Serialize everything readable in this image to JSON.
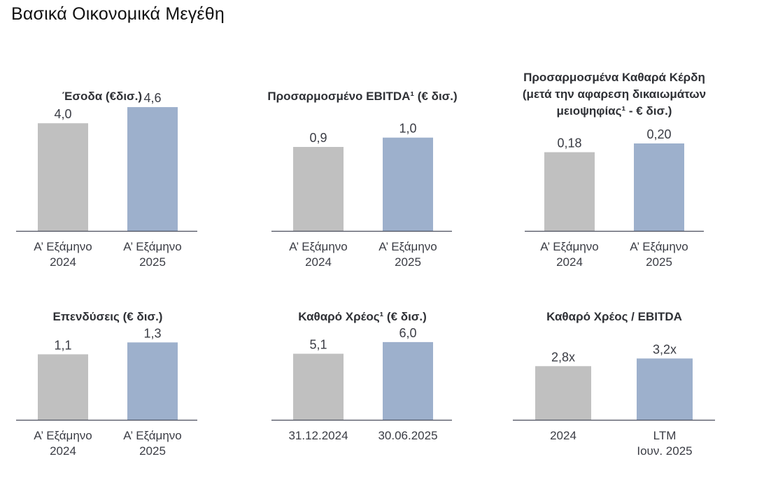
{
  "page": {
    "title": "Βασικά Οικονομικά Μεγέθη"
  },
  "colors": {
    "prior": "#c0c0c0",
    "current": "#9db0cc",
    "axis": "#4a4d5c"
  },
  "chart_data": [
    {
      "type": "bar",
      "title_lines": [
        "Έσοδα (€δισ.)"
      ],
      "categories": [
        [
          "Α’ Εξάμηνο",
          "2024"
        ],
        [
          "Α’ Εξάμηνο",
          "2025"
        ]
      ],
      "values": [
        4.0,
        4.6
      ],
      "labels": [
        "4,0",
        "4,6"
      ],
      "xlabel": "",
      "ylabel": "",
      "ylim": [
        0,
        5.2
      ]
    },
    {
      "type": "bar",
      "title_lines": [
        "Προσαρμοσμένο EBITDA¹ (€ δισ.)"
      ],
      "categories": [
        [
          "Α’ Εξάμηνο",
          "2024"
        ],
        [
          "Α’ Εξάμηνο",
          "2025"
        ]
      ],
      "values": [
        0.9,
        1.0
      ],
      "labels": [
        "0,9",
        "1,0"
      ],
      "xlabel": "",
      "ylabel": "",
      "ylim": [
        0,
        1.5
      ]
    },
    {
      "type": "bar",
      "title_lines": [
        "Προσαρμοσμένα Καθαρά Κέρδη",
        "(μετά την αφαρεση δικαιωμάτων",
        "μειοψηφίας¹ - € δισ.)"
      ],
      "categories": [
        [
          "Α’ Εξάμηνο",
          "2024"
        ],
        [
          "Α’ Εξάμηνο",
          "2025"
        ]
      ],
      "values": [
        0.18,
        0.2
      ],
      "labels": [
        "0,18",
        "0,20"
      ],
      "xlabel": "",
      "ylabel": "",
      "ylim": [
        0,
        0.32
      ]
    },
    {
      "type": "bar",
      "title_lines": [
        "Επενδύσεις (€ δισ.)"
      ],
      "categories": [
        [
          "Α’ Εξάμηνο",
          "2024"
        ],
        [
          "Α’ Εξάμηνο",
          "2025"
        ]
      ],
      "values": [
        1.1,
        1.3
      ],
      "labels": [
        "1,1",
        "1,3"
      ],
      "xlabel": "",
      "ylabel": "",
      "ylim": [
        0,
        2.35
      ]
    },
    {
      "type": "bar",
      "title_lines": [
        "Καθαρό Χρέος¹ (€ δισ.)"
      ],
      "categories": [
        [
          "31.12.2024"
        ],
        [
          "30.06.2025"
        ]
      ],
      "values": [
        5.1,
        6.0
      ],
      "labels": [
        "5,1",
        "6,0"
      ],
      "xlabel": "",
      "ylabel": "",
      "ylim": [
        0,
        10.8
      ]
    },
    {
      "type": "bar",
      "title_lines": [
        "Καθαρό Χρέος / EBITDA"
      ],
      "categories": [
        [
          "2024"
        ],
        [
          "LTM",
          "Ιουν. 2025"
        ]
      ],
      "values": [
        2.8,
        3.2
      ],
      "labels": [
        "2,8x",
        "3,2x"
      ],
      "xlabel": "",
      "ylabel": "",
      "ylim": [
        0,
        7.3
      ]
    }
  ]
}
